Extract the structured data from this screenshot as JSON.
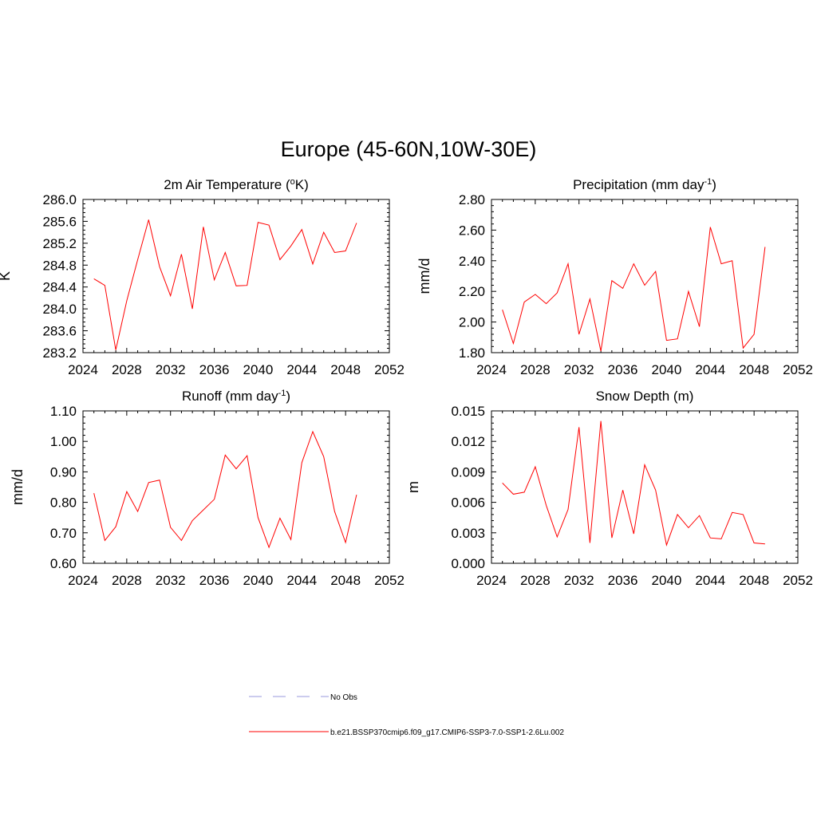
{
  "title": "Europe (45-60N,10W-30E)",
  "colors": {
    "series": "#ff0000",
    "obs": "#9999dd",
    "axis": "#000000"
  },
  "chart_data": [
    {
      "type": "line",
      "title": "2m Air Temperature (",
      "title_sup": "o",
      "title_post": "K)",
      "ylabel": "K",
      "xlim": [
        2024,
        2052
      ],
      "ylim": [
        283.2,
        286.0
      ],
      "xticks": [
        "2024",
        "2028",
        "2032",
        "2036",
        "2040",
        "2044",
        "2048",
        "2052"
      ],
      "yticks": [
        "283.2",
        "283.6",
        "284.0",
        "284.4",
        "284.8",
        "285.2",
        "285.6",
        "286.0"
      ],
      "x": [
        2025,
        2026,
        2027,
        2028,
        2029,
        2030,
        2031,
        2032,
        2033,
        2034,
        2035,
        2036,
        2037,
        2038,
        2039,
        2040,
        2041,
        2042,
        2043,
        2044,
        2045,
        2046,
        2047,
        2048,
        2049
      ],
      "values": [
        284.55,
        284.43,
        283.25,
        284.15,
        284.9,
        285.63,
        284.77,
        284.24,
        285.0,
        284.0,
        285.5,
        284.53,
        285.03,
        284.42,
        284.43,
        285.58,
        285.53,
        284.9,
        285.15,
        285.45,
        284.82,
        285.4,
        285.03,
        285.06,
        285.57
      ]
    },
    {
      "type": "line",
      "title": "Precipitation (mm day",
      "title_sup": "-1",
      "title_post": ")",
      "ylabel": "mm/d",
      "xlim": [
        2024,
        2052
      ],
      "ylim": [
        1.8,
        2.8
      ],
      "xticks": [
        "2024",
        "2028",
        "2032",
        "2036",
        "2040",
        "2044",
        "2048",
        "2052"
      ],
      "yticks": [
        "1.80",
        "2.00",
        "2.20",
        "2.40",
        "2.60",
        "2.80"
      ],
      "x": [
        2025,
        2026,
        2027,
        2028,
        2029,
        2030,
        2031,
        2032,
        2033,
        2034,
        2035,
        2036,
        2037,
        2038,
        2039,
        2040,
        2041,
        2042,
        2043,
        2044,
        2045,
        2046,
        2047,
        2048,
        2049
      ],
      "values": [
        2.08,
        1.86,
        2.13,
        2.18,
        2.12,
        2.19,
        2.38,
        1.92,
        2.15,
        1.81,
        2.27,
        2.22,
        2.38,
        2.24,
        2.33,
        1.88,
        1.89,
        2.2,
        1.97,
        2.62,
        2.38,
        2.4,
        1.83,
        1.92,
        2.49
      ]
    },
    {
      "type": "line",
      "title": "Runoff (mm day",
      "title_sup": "-1",
      "title_post": ")",
      "ylabel": "mm/d",
      "xlim": [
        2024,
        2052
      ],
      "ylim": [
        0.6,
        1.1
      ],
      "xticks": [
        "2024",
        "2028",
        "2032",
        "2036",
        "2040",
        "2044",
        "2048",
        "2052"
      ],
      "yticks": [
        "0.60",
        "0.70",
        "0.80",
        "0.90",
        "1.00",
        "1.10"
      ],
      "x": [
        2025,
        2026,
        2027,
        2028,
        2029,
        2030,
        2031,
        2032,
        2033,
        2034,
        2035,
        2036,
        2037,
        2038,
        2039,
        2040,
        2041,
        2042,
        2043,
        2044,
        2045,
        2046,
        2047,
        2048,
        2049
      ],
      "values": [
        0.83,
        0.675,
        0.72,
        0.835,
        0.77,
        0.865,
        0.873,
        0.718,
        0.675,
        0.74,
        0.775,
        0.81,
        0.955,
        0.91,
        0.953,
        0.75,
        0.652,
        0.748,
        0.678,
        0.93,
        1.032,
        0.95,
        0.77,
        0.668,
        0.825
      ]
    },
    {
      "type": "line",
      "title": "Snow Depth (m)",
      "title_sup": "",
      "title_post": "",
      "ylabel": "m",
      "xlim": [
        2024,
        2052
      ],
      "ylim": [
        0.0,
        0.015
      ],
      "xticks": [
        "2024",
        "2028",
        "2032",
        "2036",
        "2040",
        "2044",
        "2048",
        "2052"
      ],
      "yticks": [
        "0.000",
        "0.003",
        "0.006",
        "0.009",
        "0.012",
        "0.015"
      ],
      "x": [
        2025,
        2026,
        2027,
        2028,
        2029,
        2030,
        2031,
        2032,
        2033,
        2034,
        2035,
        2036,
        2037,
        2038,
        2039,
        2040,
        2041,
        2042,
        2043,
        2044,
        2045,
        2046,
        2047,
        2048,
        2049
      ],
      "values": [
        0.0079,
        0.0068,
        0.007,
        0.0095,
        0.0057,
        0.0026,
        0.0053,
        0.0134,
        0.002,
        0.014,
        0.0025,
        0.0072,
        0.0029,
        0.0097,
        0.0072,
        0.0018,
        0.0048,
        0.0035,
        0.0047,
        0.0025,
        0.0024,
        0.005,
        0.0048,
        0.002,
        0.0019
      ]
    }
  ],
  "legend": [
    {
      "label": "No Obs",
      "style": "dashed"
    },
    {
      "label": "b.e21.BSSP370cmip6.f09_g17.CMIP6-SSP3-7.0-SSP1-2.6Lu.002",
      "style": "solid"
    }
  ]
}
